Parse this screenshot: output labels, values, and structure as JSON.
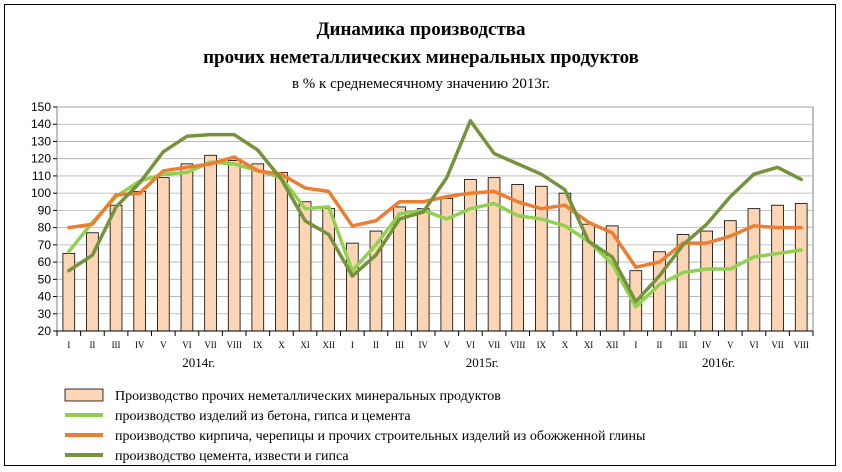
{
  "chart_data": {
    "type": "bar",
    "title": [
      "Динамика производства",
      "прочих неметаллических минеральных продуктов"
    ],
    "subtitle": "в % к среднемесячному значению 2013г.",
    "ylim": [
      20,
      150
    ],
    "yticks": [
      20,
      30,
      40,
      50,
      60,
      70,
      80,
      90,
      100,
      110,
      120,
      130,
      140,
      150
    ],
    "grid": true,
    "legend_position": "bottom",
    "categories": [
      "I",
      "II",
      "III",
      "IV",
      "V",
      "VI",
      "VII",
      "VIII",
      "IX",
      "X",
      "XI",
      "XII",
      "I",
      "II",
      "III",
      "IV",
      "V",
      "VI",
      "VII",
      "VIII",
      "IX",
      "X",
      "XI",
      "XII",
      "I",
      "II",
      "III",
      "IV",
      "V",
      "VI",
      "VII",
      "VIII"
    ],
    "years": [
      {
        "label": "2014г.",
        "start": 0,
        "end": 11
      },
      {
        "label": "2015г.",
        "start": 12,
        "end": 23
      },
      {
        "label": "2016г.",
        "start": 24,
        "end": 31
      }
    ],
    "series": [
      {
        "name": "Производство прочих неметаллических минеральных продуктов",
        "kind": "bar",
        "color": "#fcd5b5",
        "values": [
          65,
          77,
          93,
          101,
          109,
          117,
          122,
          119,
          117,
          112,
          95,
          91,
          71,
          78,
          92,
          91,
          97,
          108,
          109,
          105,
          104,
          100,
          82,
          81,
          55,
          66,
          76,
          78,
          84,
          91,
          93,
          94
        ]
      },
      {
        "name": "производство изделий из бетона, гипса и цемента",
        "kind": "line",
        "color": "#92d050",
        "values": [
          66,
          83,
          98,
          107,
          111,
          112,
          118,
          117,
          113,
          109,
          91,
          92,
          55,
          70,
          88,
          90,
          85,
          91,
          94,
          87,
          85,
          81,
          72,
          59,
          34,
          47,
          54,
          56,
          56,
          63,
          65,
          67
        ]
      },
      {
        "name": "производство кирпича, черепицы и прочих строительных изделий из обожженной глины",
        "kind": "line",
        "color": "#ed7d31",
        "values": [
          80,
          82,
          99,
          100,
          113,
          115,
          117,
          121,
          113,
          111,
          103,
          101,
          81,
          84,
          95,
          95,
          98,
          100,
          101,
          95,
          91,
          93,
          83,
          77,
          57,
          60,
          71,
          71,
          75,
          81,
          80,
          80
        ]
      },
      {
        "name": "производство цемента, извести и гипса",
        "kind": "line",
        "color": "#76923c",
        "values": [
          55,
          64,
          92,
          106,
          124,
          133,
          134,
          134,
          125,
          108,
          84,
          76,
          52,
          64,
          85,
          89,
          109,
          142,
          123,
          117,
          111,
          102,
          72,
          63,
          37,
          52,
          70,
          82,
          98,
          111,
          115,
          108
        ]
      }
    ]
  }
}
